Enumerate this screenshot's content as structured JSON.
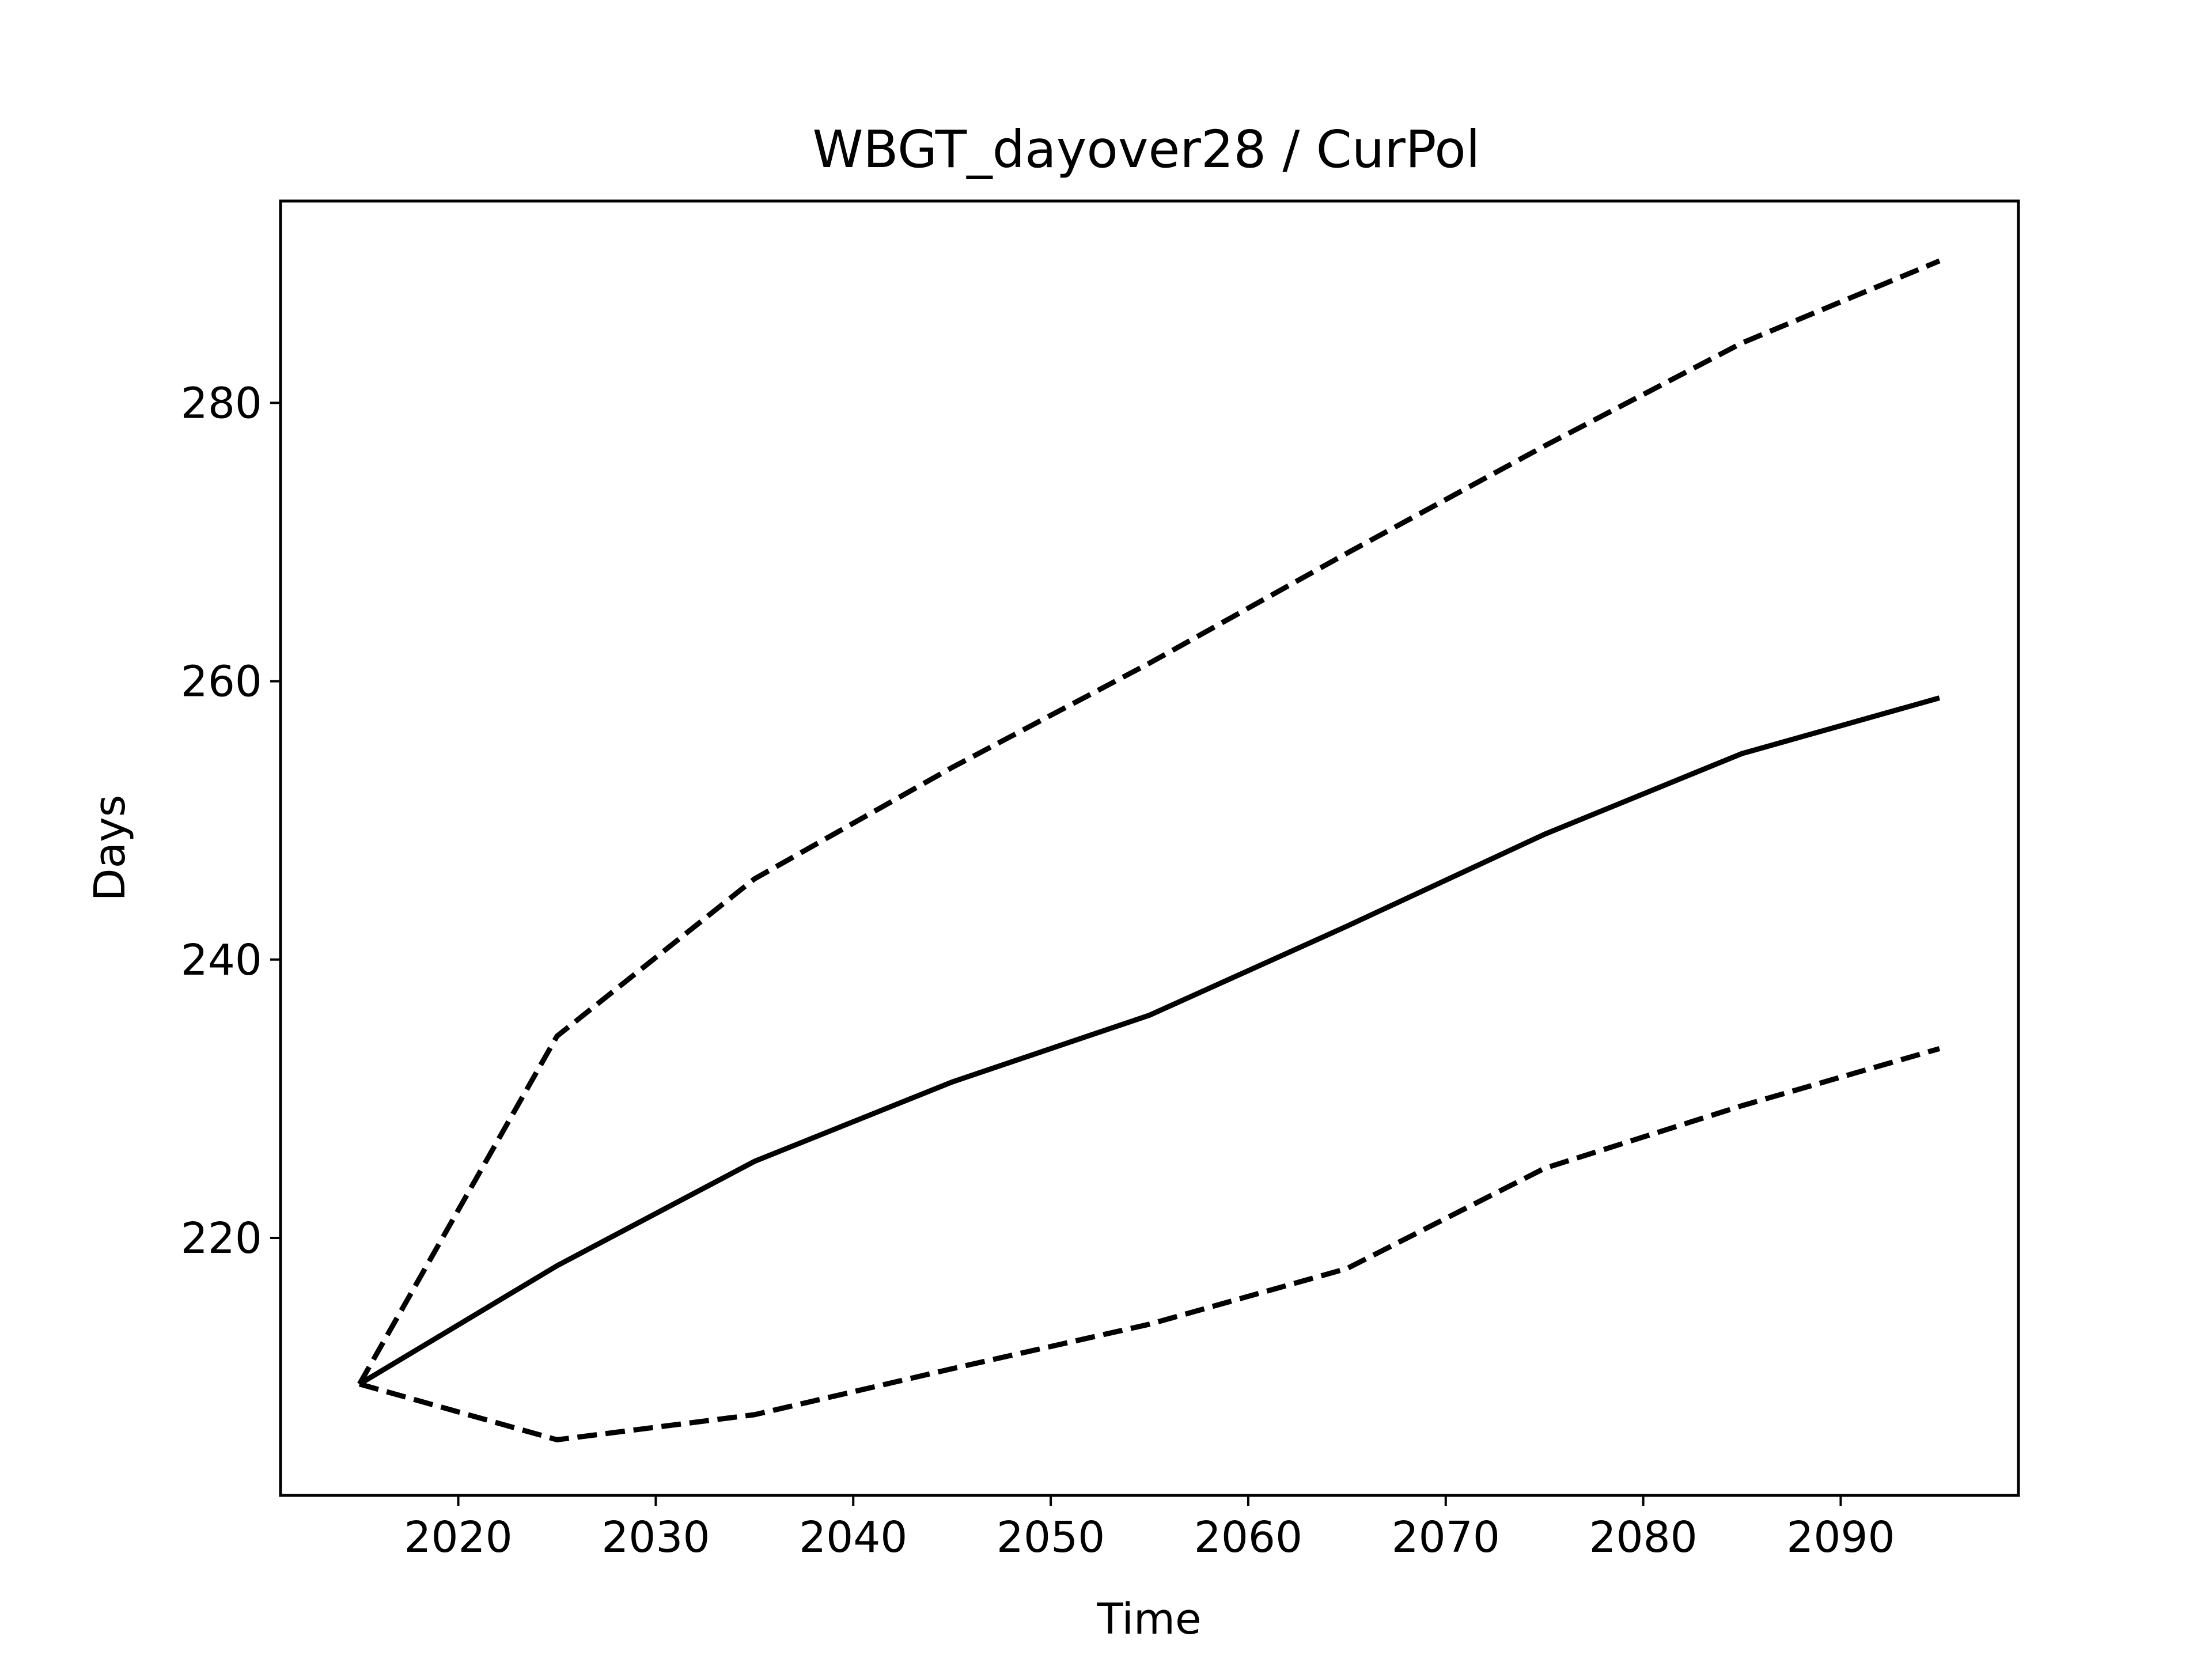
{
  "chart_data": {
    "type": "line",
    "title": "WBGT_dayover28 / CurPol",
    "xlabel": "Time",
    "ylabel": "Days",
    "xlim": [
      2011,
      2099
    ],
    "ylim": [
      201.5,
      294.5
    ],
    "xticks": [
      2020,
      2030,
      2040,
      2050,
      2060,
      2070,
      2080,
      2090
    ],
    "yticks": [
      220,
      240,
      260,
      280
    ],
    "grid": false,
    "legend": "none",
    "x": [
      2015,
      2025,
      2035,
      2045,
      2055,
      2065,
      2075,
      2085,
      2095
    ],
    "series": [
      {
        "style": "dashed",
        "color": "#000000",
        "values": [
          209.5,
          234.5,
          245.8,
          253.8,
          261.3,
          269.2,
          276.9,
          284.3,
          290.2
        ]
      },
      {
        "style": "solid",
        "color": "#000000",
        "values": [
          209.5,
          218.0,
          225.5,
          231.2,
          236.0,
          242.4,
          249.0,
          254.8,
          258.8
        ]
      },
      {
        "style": "dashed",
        "color": "#000000",
        "values": [
          209.5,
          205.5,
          207.3,
          210.6,
          213.8,
          217.8,
          225.0,
          229.5,
          233.6
        ]
      }
    ]
  }
}
